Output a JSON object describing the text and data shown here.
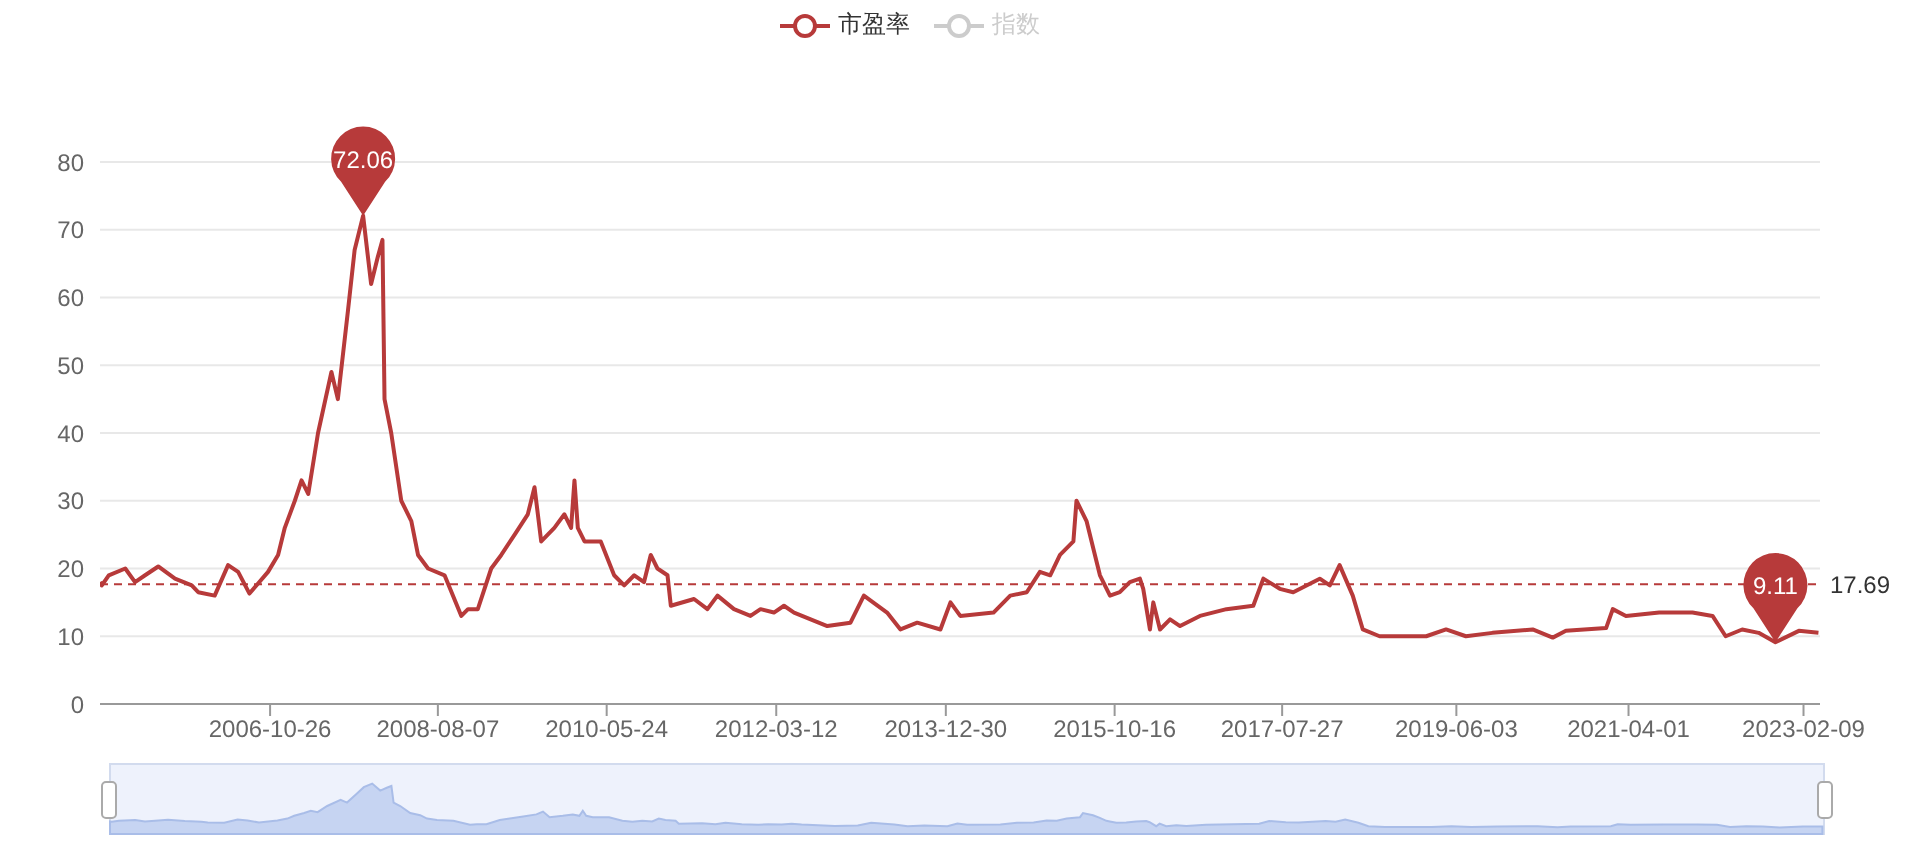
{
  "chart_data": {
    "type": "line",
    "x": [
      "2005-01-04",
      "2005-01-11",
      "2005-02-07",
      "2005-04-12",
      "2005-05-20",
      "2005-06-28",
      "2005-08-18",
      "2005-10-22",
      "2005-12-26",
      "2006-01-20",
      "2006-03-25",
      "2006-05-16",
      "2006-06-24",
      "2006-08-07",
      "2006-10-18",
      "2006-11-26",
      "2006-12-22",
      "2007-01-30",
      "2007-02-25",
      "2007-03-23",
      "2007-04-30",
      "2007-06-21",
      "2007-07-16",
      "2007-08-24",
      "2007-09-19",
      "2007-10-22",
      "2007-11-22",
      "2007-12-18",
      "2008-01-05",
      "2008-01-13",
      "2008-02-08",
      "2008-03-18",
      "2008-04-26",
      "2008-05-22",
      "2008-06-30",
      "2008-09-02",
      "2008-11-06",
      "2008-12-02",
      "2009-01-09",
      "2009-03-02",
      "2009-04-10",
      "2009-06-01",
      "2009-07-22",
      "2009-08-17",
      "2009-09-12",
      "2009-11-02",
      "2009-12-11",
      "2010-01-06",
      "2010-01-19",
      "2010-02-01",
      "2010-02-27",
      "2010-05-01",
      "2010-06-22",
      "2010-07-31",
      "2010-09-08",
      "2010-10-16",
      "2010-11-11",
      "2010-12-07",
      "2011-01-15",
      "2011-01-28",
      "2011-04-28",
      "2011-06-19",
      "2011-07-28",
      "2011-09-30",
      "2011-12-03",
      "2012-01-11",
      "2012-03-03",
      "2012-04-11",
      "2012-05-20",
      "2012-09-26",
      "2012-12-25",
      "2013-02-15",
      "2013-05-16",
      "2013-07-07",
      "2013-09-10",
      "2013-12-09",
      "2014-01-17",
      "2014-02-24",
      "2014-07-03",
      "2014-09-06",
      "2014-11-09",
      "2014-12-30",
      "2015-02-08",
      "2015-03-18",
      "2015-05-09",
      "2015-05-21",
      "2015-06-29",
      "2015-07-25",
      "2015-08-20",
      "2015-09-02",
      "2015-09-28",
      "2015-11-05",
      "2015-12-14",
      "2016-01-22",
      "2016-02-04",
      "2016-03-01",
      "2016-03-14",
      "2016-04-09",
      "2016-05-18",
      "2016-06-26",
      "2016-09-11",
      "2016-12-23",
      "2017-04-06",
      "2017-05-15",
      "2017-07-18",
      "2017-09-08",
      "2017-12-20",
      "2018-01-28",
      "2018-03-07",
      "2018-04-27",
      "2018-06-05",
      "2018-08-09",
      "2019-02-06",
      "2019-04-24",
      "2019-07-10",
      "2019-10-21",
      "2020-03-25",
      "2020-06-11",
      "2020-08-01",
      "2021-01-04",
      "2021-01-30",
      "2021-03-22",
      "2021-07-29",
      "2021-12-05",
      "2022-02-21",
      "2022-04-13",
      "2022-06-16",
      "2022-08-19",
      "2022-10-23",
      "2023-01-22",
      "2023-04-08"
    ],
    "series": [
      {
        "name": "市盈率",
        "color": "#b73a3a",
        "values": [
          18,
          17.5,
          19,
          20,
          18,
          19,
          20.3,
          18.5,
          17.5,
          16.5,
          16,
          20.5,
          19.5,
          16.3,
          19.5,
          22,
          26,
          30,
          33,
          31,
          40,
          49,
          45,
          58,
          67,
          72.06,
          62,
          66,
          68.5,
          45,
          40,
          30,
          27,
          22,
          20,
          19,
          13,
          14,
          14,
          20,
          22,
          25,
          28,
          32,
          24,
          26,
          28,
          26,
          33,
          26,
          24,
          24,
          19,
          17.5,
          19,
          18,
          22,
          20,
          19,
          14.5,
          15.5,
          14,
          16,
          14,
          13,
          14,
          13.5,
          14.5,
          13.5,
          11.5,
          12,
          16,
          13.5,
          11,
          12,
          11,
          15,
          13,
          13.5,
          16,
          16.5,
          19.5,
          19,
          22,
          24,
          30,
          27,
          23,
          19,
          18,
          16,
          16.5,
          18,
          18.5,
          17,
          11,
          15,
          11,
          12.5,
          11.5,
          13,
          14,
          14.5,
          18.5,
          17,
          16.5,
          18.5,
          17.5,
          20.5,
          16,
          11,
          10,
          10,
          11,
          10,
          10.5,
          11,
          9.8,
          10.8,
          11.2,
          14,
          13,
          13.5,
          13.5,
          13,
          10,
          11,
          10.5,
          9.11,
          10.8,
          10.5
        ]
      },
      {
        "name": "指数",
        "color": "#cccccc",
        "values": [
          null,
          null,
          null,
          null,
          null,
          null,
          null,
          null,
          null,
          null,
          null,
          null,
          null,
          null,
          null,
          null,
          null,
          null,
          null,
          null,
          null,
          null,
          null,
          null,
          null,
          null,
          null,
          null,
          null,
          null,
          null,
          null,
          null,
          null,
          null,
          null,
          null,
          null,
          null,
          null,
          null,
          null,
          null,
          null,
          null,
          null,
          null,
          null,
          null,
          null,
          null,
          null,
          null,
          null,
          null,
          null,
          null,
          null,
          null,
          null,
          null,
          null,
          null,
          null,
          null,
          null,
          null,
          null,
          null,
          null,
          null,
          null,
          null,
          null,
          null,
          null,
          null,
          null,
          null,
          null,
          null,
          null,
          null,
          null,
          null,
          null,
          null,
          null,
          null,
          null,
          null,
          null,
          null,
          null,
          null,
          null,
          null,
          null,
          null,
          null,
          null,
          null,
          null,
          null,
          null,
          null,
          null,
          null,
          null,
          null,
          null,
          null,
          null,
          null,
          null,
          null,
          null,
          null,
          null,
          null,
          null,
          null,
          null,
          null,
          null,
          null,
          null,
          null,
          null,
          null,
          null
        ]
      }
    ],
    "xlim": [
      "2005-01-04",
      "2023-04-14"
    ],
    "xticks": [
      "2006-10-26",
      "2008-08-07",
      "2010-05-24",
      "2012-03-12",
      "2013-12-30",
      "2015-10-16",
      "2017-07-27",
      "2019-06-03",
      "2021-04-01",
      "2023-02-09"
    ],
    "ylim": [
      0,
      80
    ],
    "yticks": [
      0,
      10,
      20,
      30,
      40,
      50,
      60,
      70,
      80
    ],
    "grid": "y",
    "legend": "top",
    "ref_lines": [
      {
        "axis": "y",
        "value": 17.69,
        "label": "17.69",
        "line_style": "dashed",
        "color": "#b73a3a"
      }
    ],
    "annotations": [
      {
        "text": "72.06",
        "x": "2007-10-22",
        "y": 72.06
      },
      {
        "text": "9.11",
        "x": "2022-10-23",
        "y": 9.11
      }
    ]
  }
}
